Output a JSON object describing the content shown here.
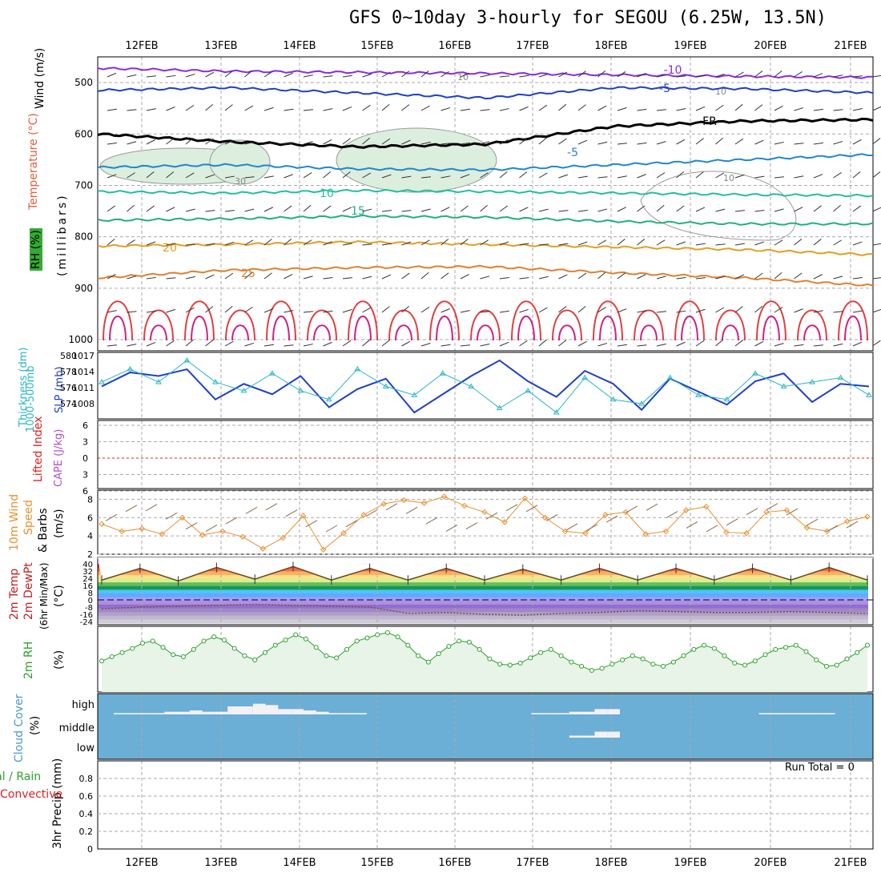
{
  "title": "GFS 0~10day 3-hourly for SEGOU (6.25W, 13.5N)",
  "dates": [
    "12FEB",
    "13FEB",
    "14FEB",
    "15FEB",
    "16FEB",
    "17FEB",
    "18FEB",
    "19FEB",
    "20FEB",
    "21FEB"
  ],
  "run_total": "Run Total = 0",
  "colors": {
    "grid": "#aaaaaa",
    "cloud_bg": "#6baed6",
    "cloud_fill": "#f4f0f8",
    "precip_green": "#2ca02c",
    "precip_red": "#e02020"
  },
  "panel_labels": {
    "wind": "Wind (m/s)",
    "temperature": "Temperature (°C)",
    "rh": "RH (%)",
    "millibars": "(millibars)",
    "thickness": "Thickness (dm)",
    "thickness_range": "1000-500mb",
    "slp": "SLP (mb)",
    "lifted_index": "Lifted Index",
    "cape": "CAPE (J/kg)",
    "wind10_a": "10m Wind",
    "wind10_b": "Speed",
    "wind10_c": "& Barbs",
    "wind10_unit": "(m/s)",
    "temp2m_a": "2m Temp",
    "temp2m_b": "2m DewPt",
    "temp2m_c": "(6hr Min/Max)",
    "temp2m_unit": "(°C)",
    "rh2m": "2m RH",
    "rh2m_unit": "(%)",
    "cloud": "Cloud Cover",
    "cloud_unit": "(%)",
    "precip_a": "3hr Precip (mm)",
    "precip_b": "Total / Rain",
    "precip_c": "Convective"
  },
  "chart_data": [
    {
      "type": "contour",
      "name": "upper-air cross section",
      "ylabel": "(millibars)",
      "ylim": [
        1000,
        450
      ],
      "y_ticks": [
        500,
        600,
        700,
        800,
        900,
        1000
      ],
      "temperature_contours": [
        {
          "label": "-10",
          "pressure": [
            472,
            478,
            480,
            482,
            485,
            488,
            490
          ]
        },
        {
          "label": "-5",
          "pressure": [
            515,
            510,
            520,
            530,
            510,
            512,
            520
          ]
        },
        {
          "label": "FR",
          "pressure": [
            600,
            615,
            625,
            620,
            585,
            575,
            572
          ]
        },
        {
          "label": "-5",
          "pressure": [
            665,
            660,
            668,
            670,
            660,
            650,
            640
          ]
        },
        {
          "label": "10",
          "pressure": [
            712,
            715,
            710,
            712,
            715,
            718,
            720
          ]
        },
        {
          "label": "15",
          "pressure": [
            768,
            765,
            760,
            762,
            770,
            775,
            775
          ]
        },
        {
          "label": "20",
          "pressure": [
            818,
            815,
            810,
            815,
            820,
            825,
            835
          ]
        },
        {
          "label": "25",
          "pressure": [
            880,
            865,
            860,
            858,
            870,
            880,
            895
          ]
        }
      ],
      "rh_labels": [
        "10",
        "30",
        "10",
        "10"
      ]
    },
    {
      "type": "line",
      "name": "thickness and slp",
      "series": [
        {
          "name": "SLP",
          "color": "#1f3fc8",
          "axis_ticks": [
            "1017",
            "1014",
            "1011",
            "1008"
          ],
          "values": [
            1011.5,
            1014.2,
            1013.5,
            1014.8,
            1009.0,
            1012.0,
            1010.0,
            1013.5,
            1007.5,
            1011.0,
            1013.0,
            1006.5,
            1010.0,
            1013.5,
            1016.5,
            1012.5,
            1009.5,
            1014.5,
            1012.0,
            1007.0,
            1013.0,
            1010.5,
            1008.0,
            1012.5,
            1014.0,
            1008.5,
            1012.0,
            1011.5
          ]
        },
        {
          "name": "Thickness",
          "color": "#29b6c8",
          "axis_ticks": [
            "580",
            "578",
            "576",
            "574"
          ],
          "values": [
            577.0,
            578.5,
            577.0,
            579.5,
            577.0,
            576.0,
            578.0,
            576.0,
            575.0,
            578.5,
            576.5,
            575.5,
            578.0,
            576.5,
            574.0,
            576.0,
            573.5,
            577.5,
            575.0,
            574.5,
            577.5,
            575.5,
            575.0,
            578.0,
            576.5,
            577.0,
            577.5,
            575.5
          ]
        }
      ]
    },
    {
      "type": "line",
      "name": "lifted index and cape",
      "y_ticks": [
        "6",
        "3",
        "0",
        "3",
        "6"
      ],
      "values": []
    },
    {
      "type": "line",
      "name": "10m wind speed",
      "ylim": [
        2,
        9
      ],
      "y_ticks": [
        2,
        4,
        6,
        8
      ],
      "values": [
        5.3,
        4.5,
        4.8,
        4.2,
        6.0,
        4.1,
        4.5,
        3.9,
        2.6,
        3.8,
        6.2,
        2.5,
        4.3,
        6.3,
        7.5,
        7.9,
        7.6,
        8.3,
        7.3,
        6.6,
        5.5,
        8.1,
        6.0,
        4.5,
        4.3,
        6.3,
        6.6,
        4.2,
        4.5,
        6.8,
        7.2,
        4.4,
        4.3,
        6.6,
        6.8,
        4.9,
        4.5,
        5.6,
        6.1
      ]
    },
    {
      "type": "area",
      "name": "2m temperature",
      "ylim": [
        -24,
        40
      ],
      "y_ticks": [
        "40",
        "32",
        "24",
        "16",
        "8",
        "0",
        "-8",
        "-16",
        "-24"
      ],
      "temperature_values": [
        22,
        35,
        21,
        36,
        23,
        37,
        22,
        35,
        22,
        35,
        22,
        34,
        22,
        35,
        22,
        35,
        22,
        35,
        22,
        36,
        22
      ],
      "dewpoint_values": [
        -10,
        -8,
        -7,
        -6,
        -5,
        -6,
        -7,
        -8,
        -15,
        -14,
        -16,
        -17,
        -15,
        -14,
        -12,
        -13,
        -14,
        -14,
        -13,
        -14,
        -15
      ]
    },
    {
      "type": "line",
      "name": "2m RH",
      "values": [
        25,
        29,
        33,
        37,
        42,
        44,
        38,
        31,
        29,
        36,
        44,
        48,
        45,
        37,
        30,
        26,
        33,
        40,
        45,
        50,
        46,
        38,
        30,
        28,
        36,
        44,
        47,
        50,
        52,
        48,
        40,
        30,
        24,
        32,
        39,
        44,
        43,
        36,
        27,
        22,
        21,
        23,
        28,
        33,
        36,
        30,
        24,
        20,
        16,
        18,
        22,
        26,
        30,
        27,
        22,
        20,
        24,
        30,
        36,
        40,
        37,
        30,
        23,
        21,
        25,
        31,
        36,
        38,
        40,
        34,
        26,
        20,
        21,
        27,
        33,
        40
      ]
    },
    {
      "type": "bar",
      "name": "cloud cover",
      "y_ticks": [
        "high",
        "middle",
        "low"
      ],
      "high_values": [
        5,
        5,
        5,
        5,
        10,
        10,
        15,
        10,
        10,
        30,
        30,
        40,
        35,
        20,
        20,
        15,
        10,
        5,
        5,
        5,
        0,
        0,
        0,
        0,
        0,
        0,
        0,
        0,
        0,
        0,
        0,
        0,
        0,
        5,
        5,
        5,
        10,
        10,
        20,
        20,
        0,
        0,
        0,
        0,
        0,
        0,
        0,
        0,
        0,
        0,
        0,
        5,
        5,
        5,
        5,
        5,
        5,
        0,
        0,
        0
      ],
      "middle_values": [
        0,
        0,
        0,
        0,
        0,
        0,
        0,
        0,
        0,
        0,
        0,
        0,
        0,
        0,
        0,
        0,
        0,
        0,
        0,
        0,
        0,
        0,
        0,
        0,
        0,
        0,
        0,
        0,
        0,
        0,
        0,
        0,
        0,
        0,
        0,
        0,
        5,
        5,
        15,
        15,
        0,
        0,
        0,
        0,
        0,
        0,
        0,
        0,
        0,
        0,
        0,
        0,
        0,
        0,
        0,
        0,
        0,
        0,
        0,
        0
      ],
      "low_values": []
    },
    {
      "type": "bar",
      "name": "3hr precip",
      "ylim": [
        0,
        1
      ],
      "y_ticks": [
        "0",
        "0.2",
        "0.4",
        "0.6",
        "0.8"
      ],
      "values": []
    }
  ]
}
